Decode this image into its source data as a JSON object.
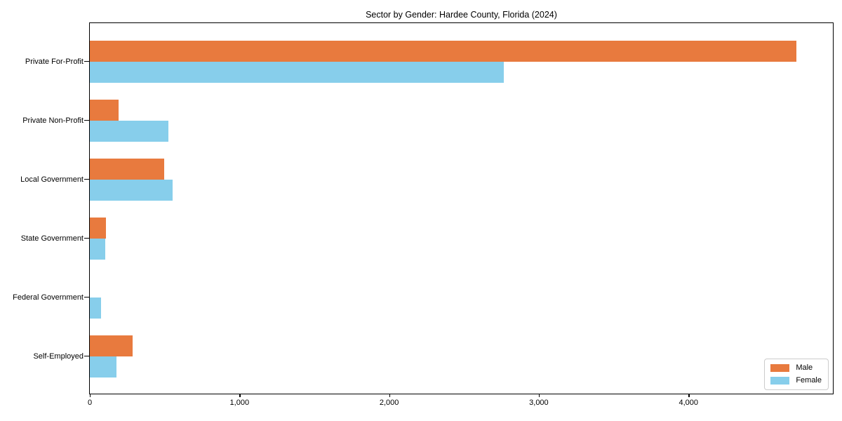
{
  "title": "Sector by Gender: Hardee County, Florida (2024)",
  "colors": {
    "male": "#e87a3e",
    "female": "#87ceeb",
    "spine": "#000000",
    "legend_border": "#cccccc",
    "background": "#ffffff"
  },
  "legend": {
    "entries": [
      {
        "label": "Male",
        "color": "#e87a3e"
      },
      {
        "label": "Female",
        "color": "#87ceeb"
      }
    ],
    "position": "lower right"
  },
  "chart_data": {
    "type": "bar",
    "orientation": "horizontal",
    "title": "Sector by Gender: Hardee County, Florida (2024)",
    "categories": [
      "Private For-Profit",
      "Private Non-Profit",
      "Local Government",
      "State Government",
      "Federal Government",
      "Self-Employed"
    ],
    "series": [
      {
        "name": "Male",
        "color": "#e87a3e",
        "values": [
          4722,
          190,
          496,
          110,
          0,
          288
        ]
      },
      {
        "name": "Female",
        "color": "#87ceeb",
        "values": [
          2768,
          524,
          551,
          104,
          74,
          180
        ]
      }
    ],
    "xlabel": "",
    "ylabel": "",
    "xlim": [
      0,
      4960
    ],
    "xticks": [
      0,
      1000,
      2000,
      3000,
      4000
    ],
    "xtick_labels": [
      "0",
      "1,000",
      "2,000",
      "3,000",
      "4,000"
    ],
    "grid": false,
    "legend_position": "lower right"
  }
}
